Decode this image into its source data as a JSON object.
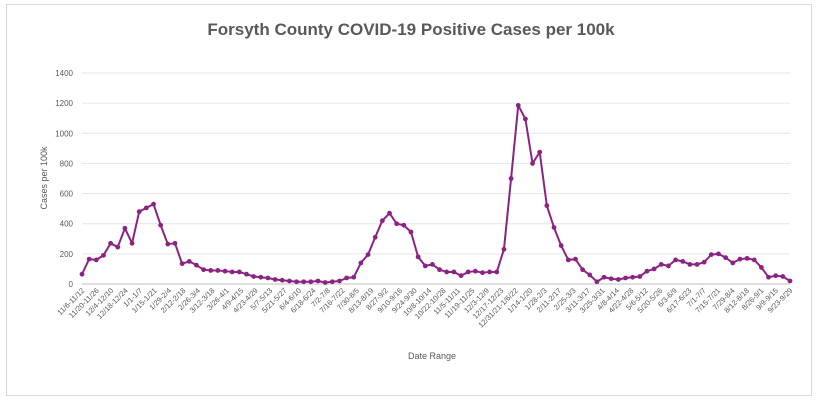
{
  "chart_data": {
    "type": "line",
    "title": "Forsyth County COVID-19 Positive Cases per 100k",
    "xlabel": "Date Range",
    "ylabel": "Cases per 100k",
    "ylim": [
      0,
      1400
    ],
    "yticks": [
      0,
      200,
      400,
      600,
      800,
      1000,
      1200,
      1400
    ],
    "grid": "horizontal",
    "legend": "none",
    "color": "#8B2383",
    "x_tick_labels": [
      "11/6-11/12",
      "11/20-11/26",
      "12/4-12/10",
      "12/18-12/24",
      "1/1-1/7",
      "1/15-1/21",
      "1/29-2/4",
      "2/12-2/18",
      "2/26-3/4",
      "3/12-3/18",
      "3/26-4/1",
      "4/9-4/15",
      "4/23-4/29",
      "5/7-5/13",
      "5/21-5/27",
      "6/4-6/10",
      "6/18-6/24",
      "7/2-7/8",
      "7/16-7/22",
      "7/30-8/5",
      "8/13-8/19",
      "8/27-9/2",
      "9/10-9/16",
      "9/24-9/30",
      "10/8-10/14",
      "10/22-10/28",
      "11/5-11/11",
      "11/19-11/25",
      "12/3-12/9",
      "12/17-12/23",
      "12/31/21-1/6/22",
      "1/14-1/20",
      "1/28-2/3",
      "2/11-2/17",
      "2/25-3/3",
      "3/11-3/17",
      "3/25-3/31",
      "4/8-4/14",
      "4/22-4/28",
      "5/6-5/12",
      "5/20-5/26",
      "6/3-6/9",
      "6/17-6/23",
      "7/1-7/7",
      "7/15-7/21",
      "7/29-8/4",
      "8/12-8/18",
      "8/26-9/1",
      "9/9-9/15",
      "9/23-9/29"
    ],
    "values": [
      65,
      165,
      160,
      190,
      270,
      245,
      370,
      270,
      480,
      505,
      530,
      390,
      265,
      270,
      135,
      150,
      125,
      95,
      90,
      90,
      85,
      80,
      80,
      65,
      50,
      45,
      40,
      30,
      25,
      20,
      15,
      15,
      15,
      20,
      10,
      15,
      20,
      40,
      45,
      140,
      195,
      310,
      420,
      470,
      400,
      390,
      345,
      180,
      120,
      130,
      95,
      80,
      80,
      55,
      80,
      85,
      75,
      80,
      80,
      230,
      700,
      1185,
      1095,
      800,
      875,
      520,
      375,
      255,
      160,
      165,
      95,
      60,
      15,
      45,
      35,
      30,
      40,
      45,
      50,
      85,
      100,
      130,
      120,
      160,
      150,
      130,
      130,
      145,
      195,
      200,
      175,
      140,
      165,
      170,
      160,
      110,
      45,
      55,
      50,
      20
    ]
  }
}
